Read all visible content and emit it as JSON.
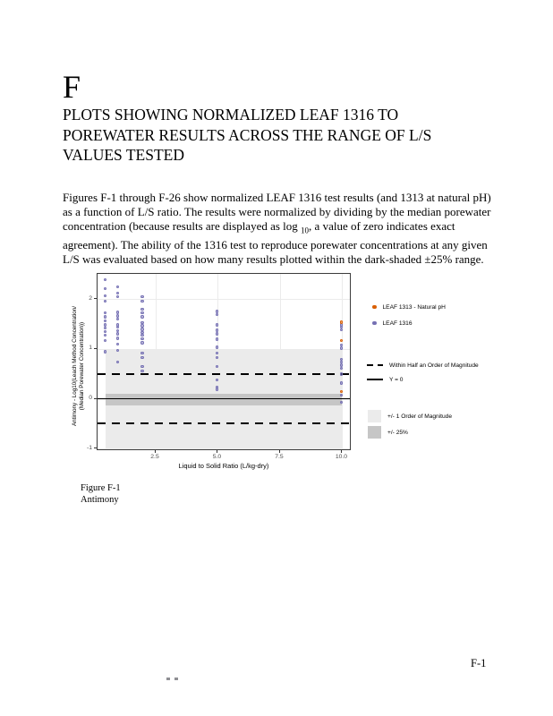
{
  "page": {
    "section_letter": "F",
    "title_lines": [
      "PLOTS SHOWING NORMALIZED LEAF 1316 TO",
      "POREWATER RESULTS ACROSS THE RANGE OF L/S",
      "VALUES TESTED"
    ],
    "paragraph": {
      "part1": "Figures F-1 through F-26 show normalized LEAF 1316 test results (and 1313 at natural pH) as a function of L/S ratio. The results were normalized by dividing by the median porewater concentration (because results are displayed as log ",
      "sub": "10",
      "part2": ", a value of zero indicates exact agreement). The ability of the 1316 test to reproduce porewater concentrations at any given L/S was evaluated based on how many results plotted within the dark-shaded ±25% range."
    },
    "figure_caption": {
      "line1": "Figure F-1",
      "line2": "Antimony"
    },
    "page_number": "F-1"
  },
  "chart_data": {
    "type": "scatter",
    "xlabel": "Liquid to Solid Ratio (L/kg-dry)",
    "ylabel_line1": "Antimony - Log10(Leach Method Concentration/",
    "ylabel_line2": "(Median Porewater Concentration))",
    "xlim": [
      0.16,
      10.38
    ],
    "ylim": [
      -1.05,
      2.51
    ],
    "x_ticks": [
      2.5,
      5.0,
      7.5,
      10.0
    ],
    "x_tick_labels": [
      "2.5",
      "5.0",
      "7.5",
      "10.0"
    ],
    "y_ticks": [
      -1,
      0,
      1,
      2
    ],
    "y_tick_labels": [
      "-1",
      "0",
      "1",
      "2"
    ],
    "grid": true,
    "legend_position": "right",
    "series": [
      {
        "name": "LEAF 1313 - Natural pH",
        "color": "#d95f02",
        "points": [
          [
            10,
            1.52
          ],
          [
            10,
            1.15
          ],
          [
            10,
            0.13
          ]
        ]
      },
      {
        "name": "LEAF 1316",
        "color": "#7570b3",
        "points": [
          [
            0.5,
            2.37
          ],
          [
            0.5,
            2.19
          ],
          [
            0.5,
            2.05
          ],
          [
            0.5,
            1.94
          ],
          [
            0.5,
            1.71
          ],
          [
            0.5,
            1.63
          ],
          [
            0.5,
            1.55
          ],
          [
            0.5,
            1.47
          ],
          [
            0.5,
            1.4
          ],
          [
            0.5,
            1.33
          ],
          [
            0.5,
            1.26
          ],
          [
            0.5,
            1.15
          ],
          [
            0.5,
            0.93
          ],
          [
            1.0,
            2.23
          ],
          [
            1.0,
            2.1
          ],
          [
            1.0,
            2.03
          ],
          [
            1.0,
            1.72
          ],
          [
            1.0,
            1.65
          ],
          [
            1.0,
            1.58
          ],
          [
            1.0,
            1.47
          ],
          [
            1.0,
            1.42
          ],
          [
            1.0,
            1.35
          ],
          [
            1.0,
            1.29
          ],
          [
            1.0,
            1.2
          ],
          [
            1.0,
            1.08
          ],
          [
            1.0,
            0.95
          ],
          [
            1.0,
            0.72
          ],
          [
            2.0,
            2.03
          ],
          [
            2.0,
            1.94
          ],
          [
            2.0,
            1.78
          ],
          [
            2.0,
            1.71
          ],
          [
            2.0,
            1.63
          ],
          [
            2.0,
            1.51
          ],
          [
            2.0,
            1.45
          ],
          [
            2.0,
            1.38
          ],
          [
            2.0,
            1.31
          ],
          [
            2.0,
            1.26
          ],
          [
            2.0,
            1.19
          ],
          [
            2.0,
            1.11
          ],
          [
            2.0,
            0.9
          ],
          [
            2.0,
            0.81
          ],
          [
            2.0,
            0.63
          ],
          [
            2.0,
            0.54
          ],
          [
            5.0,
            1.74
          ],
          [
            5.0,
            1.67
          ],
          [
            5.0,
            1.47
          ],
          [
            5.0,
            1.36
          ],
          [
            5.0,
            1.29
          ],
          [
            5.0,
            1.18
          ],
          [
            5.0,
            1.02
          ],
          [
            5.0,
            0.9
          ],
          [
            5.0,
            0.81
          ],
          [
            5.0,
            0.63
          ],
          [
            5.0,
            0.36
          ],
          [
            5.0,
            0.22
          ],
          [
            5.0,
            0.17
          ],
          [
            10.0,
            1.47
          ],
          [
            10.0,
            1.42
          ],
          [
            10.0,
            1.37
          ],
          [
            10.0,
            1.06
          ],
          [
            10.0,
            1.0
          ],
          [
            10.0,
            0.77
          ],
          [
            10.0,
            0.72
          ],
          [
            10.0,
            0.66
          ],
          [
            10.0,
            0.59
          ],
          [
            10.0,
            0.48
          ],
          [
            10.0,
            0.3
          ],
          [
            10.0,
            0.06
          ],
          [
            10.0,
            -0.09
          ]
        ]
      }
    ],
    "reference_lines": {
      "dashed": {
        "label": "Within Half an Order of Magnitude",
        "y": [
          0.5,
          -0.5
        ]
      },
      "solid": {
        "label": "Y = 0",
        "y": 0
      }
    },
    "bands": [
      {
        "label": "+/- 1 Order of Magnitude",
        "color": "#ebebeb",
        "x_from": 0.5,
        "x_to": 10.0,
        "y_from": -1.0,
        "y_to": 1.0
      },
      {
        "label": "+/- 25%",
        "color": "#c6c6c6",
        "x_from": 0.5,
        "x_to": 10.0,
        "y_from": -0.125,
        "y_to": 0.097
      }
    ],
    "legend": [
      {
        "label": "LEAF 1313 - Natural pH"
      },
      {
        "label": "LEAF 1316"
      },
      {
        "label": "Within Half an Order of Magnitude"
      },
      {
        "label": "Y = 0"
      },
      {
        "label": "+/- 1 Order of Magnitude"
      },
      {
        "label": "+/- 25%"
      }
    ]
  }
}
